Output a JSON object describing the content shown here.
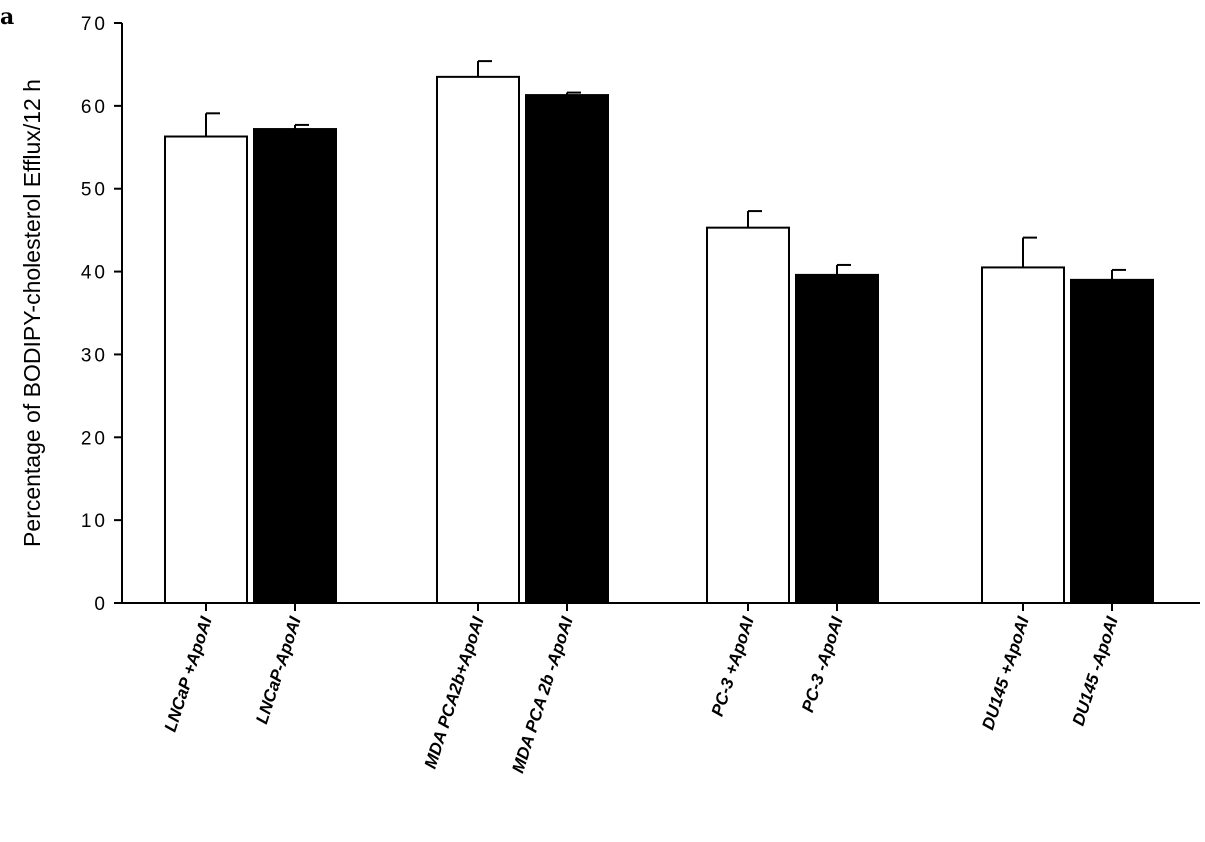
{
  "panel_label": "a",
  "colors": {
    "open_bar": "#ffffff",
    "filled_bar": "#000000",
    "stroke": "#000000"
  },
  "chart_data": {
    "type": "bar",
    "title": "",
    "xlabel": "",
    "ylabel": "Percentage of BODIPY-cholesterol Efflux/12  h",
    "ylim": [
      0,
      70
    ],
    "yticks": [
      0,
      10,
      20,
      30,
      40,
      50,
      60,
      70
    ],
    "ytick_labels": [
      "0",
      "10",
      "20",
      "30",
      "40",
      "50",
      "60",
      "70"
    ],
    "grid": false,
    "legend": "none",
    "categories": [
      "LNCaP +ApoAI",
      "LNCaP-ApoAI",
      "MDA PCA2b+ApoAI",
      "MDA PCA 2b -ApoAI",
      "PC-3 +ApoAI",
      "PC-3 -ApoAI",
      "DU145 +ApoAI",
      "DU145 -ApoAI"
    ],
    "values": [
      56.3,
      57.2,
      63.5,
      61.3,
      45.3,
      39.6,
      40.5,
      39.0
    ],
    "errors": [
      2.8,
      0.5,
      1.9,
      0.3,
      2.0,
      1.2,
      3.6,
      1.2
    ],
    "fills": [
      "open",
      "filled",
      "open",
      "filled",
      "open",
      "filled",
      "open",
      "filled"
    ]
  }
}
